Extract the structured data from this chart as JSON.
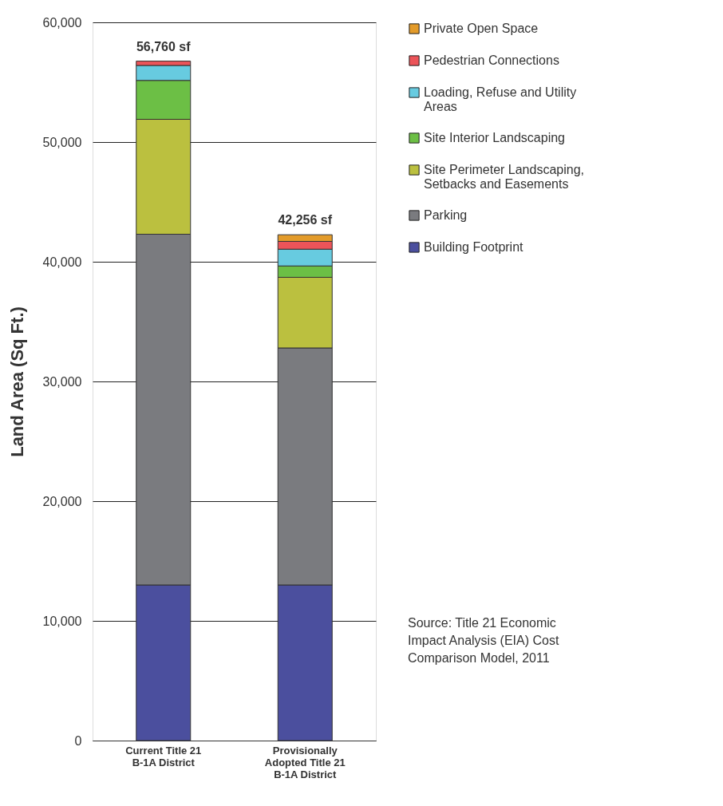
{
  "chart_data": {
    "type": "bar",
    "stacked": true,
    "ylabel": "Land Area (Sq Ft.)",
    "categories": [
      "Current Title 21\nB-1A District",
      "Provisionally\nAdopted Title 21\nB-1A District"
    ],
    "series": [
      {
        "name": "Building Footprint",
        "color": "#4b4f9e",
        "values": [
          13000,
          13000
        ]
      },
      {
        "name": "Parking",
        "color": "#7a7b7f",
        "values": [
          29300,
          19800
        ]
      },
      {
        "name": "Site Perimeter Landscaping, Setbacks and Easements",
        "color": "#bbc03f",
        "values": [
          9600,
          5900
        ]
      },
      {
        "name": "Site Interior Landscaping",
        "color": "#6cbf45",
        "values": [
          3250,
          950
        ]
      },
      {
        "name": "Loading, Refuse and Utility Areas",
        "color": "#67cbe0",
        "values": [
          1250,
          1400
        ]
      },
      {
        "name": "Pedestrian Connections",
        "color": "#ec5459",
        "values": [
          360,
          650
        ]
      },
      {
        "name": "Private Open Space",
        "color": "#e39b2a",
        "values": [
          null,
          556
        ]
      }
    ],
    "totals": [
      "56,760 sf",
      "42,256 sf"
    ],
    "ylim": [
      0,
      60000
    ],
    "yticks": [
      0,
      {
        "value": 10000,
        "label": "10,000"
      },
      {
        "value": 20000,
        "label": "20,000"
      },
      {
        "value": 30000,
        "label": "30,000"
      },
      {
        "value": 40000,
        "label": "40,000"
      },
      {
        "value": 50000,
        "label": "50,000"
      },
      {
        "value": 60000,
        "label": "60,000"
      }
    ],
    "grid": "y",
    "legend": "right",
    "annotations": [
      "Source:  Title 21 Economic Impact Analysis (EIA) Cost Comparison Model, 2011"
    ]
  }
}
